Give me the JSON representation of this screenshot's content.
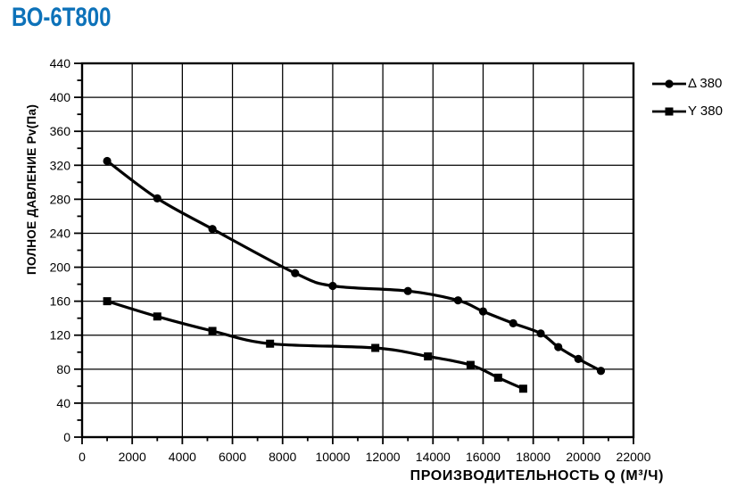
{
  "page": {
    "title": "ВО-6Т800",
    "title_color": "#0d72b9",
    "background": "#ffffff"
  },
  "chart_data": {
    "type": "line",
    "title": "ВО-6Т800",
    "xlabel": "ПРОИЗВОДИТЕЛЬНОСТЬ  Q (М³/Ч)",
    "ylabel": "ПОЛНОЕ ДАВЛЕНИЕ  Pv(Па)",
    "xlim": [
      0,
      22000
    ],
    "ylim": [
      0,
      440
    ],
    "x_major_step": 2000,
    "x_minor_step": 1000,
    "y_major_step": 40,
    "y_minor_step": 20,
    "x_tick_labels": [
      "0",
      "2000",
      "4000",
      "6000",
      "8000",
      "10000",
      "12000",
      "14000",
      "16000",
      "18000",
      "20000",
      "22000"
    ],
    "y_tick_labels": [
      "0",
      "40",
      "80",
      "120",
      "160",
      "200",
      "240",
      "280",
      "320",
      "360",
      "400",
      "440"
    ],
    "grid": true,
    "legend_position": "right-top-outside",
    "stroke_color": "#000000",
    "series": [
      {
        "name": "Δ 380",
        "marker": "circle",
        "points": [
          [
            1000,
            325
          ],
          [
            3000,
            281
          ],
          [
            5200,
            245
          ],
          [
            8500,
            193
          ],
          [
            10000,
            178
          ],
          [
            13000,
            172
          ],
          [
            15000,
            161
          ],
          [
            16000,
            148
          ],
          [
            17200,
            134
          ],
          [
            18300,
            122
          ],
          [
            19000,
            106
          ],
          [
            19800,
            92
          ],
          [
            20700,
            78
          ]
        ]
      },
      {
        "name": "Y 380",
        "marker": "square",
        "points": [
          [
            1000,
            160
          ],
          [
            3000,
            142
          ],
          [
            5200,
            125
          ],
          [
            7500,
            110
          ],
          [
            11700,
            105
          ],
          [
            13800,
            95
          ],
          [
            15500,
            85
          ],
          [
            16600,
            70
          ],
          [
            17600,
            57
          ]
        ]
      }
    ]
  }
}
